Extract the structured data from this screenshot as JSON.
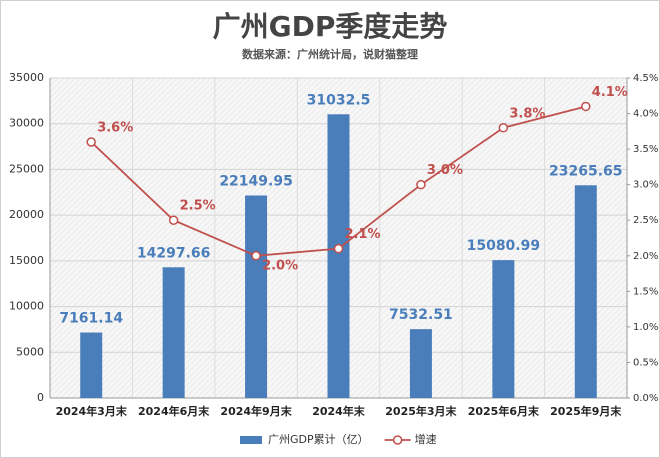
{
  "chart_data": {
    "type": "bar_line",
    "title": "广州GDP季度走势",
    "subtitle": "数据来源：广州统计局，说财猫整理",
    "categories": [
      "2024年3月末",
      "2024年6月末",
      "2024年9月末",
      "2024年末",
      "2025年3月末",
      "2025年6月末",
      "2025年9月末"
    ],
    "series": [
      {
        "name": "广州GDP累计（亿）",
        "color": "#4a7ebb",
        "type": "bar",
        "values": [
          7161.14,
          14297.66,
          22149.95,
          31032.5,
          7532.51,
          15080.99,
          23265.65
        ]
      },
      {
        "name": "增速",
        "color": "#c0504d",
        "type": "line",
        "axis": "y2",
        "values": [
          3.6,
          2.5,
          2.0,
          2.1,
          3.0,
          3.8,
          4.1
        ],
        "value_labels": [
          "3.6%",
          "2.5%",
          "2.0%",
          "2.1%",
          "3.0%",
          "3.8%",
          "4.1%"
        ]
      }
    ],
    "ylim": [
      0,
      35000
    ],
    "yticks": [
      0,
      5000,
      10000,
      15000,
      20000,
      25000,
      30000,
      35000
    ],
    "y2lim": [
      0,
      4.5
    ],
    "y2ticks": [
      {
        "value": 0,
        "label": "0.0%"
      },
      {
        "value": 0.5,
        "label": "0.5%"
      },
      {
        "value": 1,
        "label": "1.0%"
      },
      {
        "value": 1.5,
        "label": "1.5%"
      },
      {
        "value": 2,
        "label": "2.0%"
      },
      {
        "value": 2.5,
        "label": "2.5%"
      },
      {
        "value": 3,
        "label": "3.0%"
      },
      {
        "value": 3.5,
        "label": "3.5%"
      },
      {
        "value": 4,
        "label": "4.0%"
      },
      {
        "value": 4.5,
        "label": "4.5%"
      }
    ],
    "grid": true,
    "legend": "bottom"
  }
}
